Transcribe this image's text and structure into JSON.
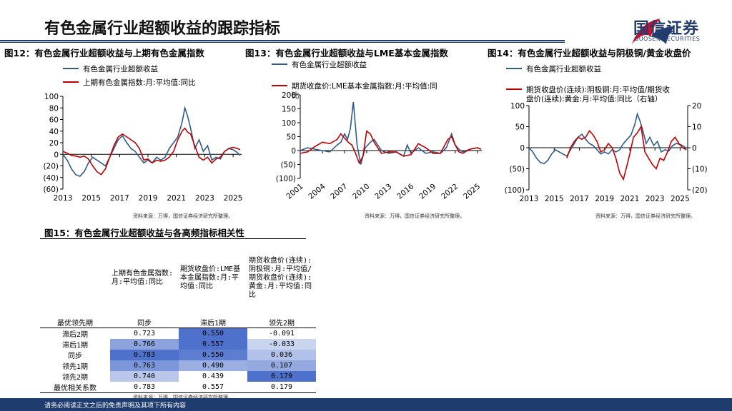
{
  "page": {
    "title": "有色金属行业超额收益的跟踪指标",
    "brand_cn": "国信证券",
    "brand_en": "GUOSEN SECURITIES",
    "footer": "请务必阅读正文之后的免责声明及其项下所有内容",
    "colors": {
      "navy": "#1f3c6e",
      "red": "#c8102e",
      "series_blue": "#2f5b8a",
      "series_red": "#c00000"
    }
  },
  "figures": {
    "fig12": {
      "title": "图12：有色金属行业超额收益与上期有色金属指数",
      "source": "资料来源：万得，国信证券经济研究所整理。"
    },
    "fig13": {
      "title": "图13：有色金属行业超额收益与LME基本金属指数",
      "source": "资料来源：万得，国信证券经济研究所整理。"
    },
    "fig14": {
      "title": "图14：有色金属行业超额收益与阴极铜/黄金收盘价",
      "source": "资料来源：万得，国信证券经济研究所整理。"
    },
    "fig15": {
      "title": "图15：有色金属行业超额收益与各高频指标相关性",
      "source": "资料来源：万得，国信证券经济研究所整理。"
    }
  },
  "chart_data": [
    {
      "type": "line",
      "id": "fig12",
      "legend": [
        "有色金属行业超额收益",
        "上期有色金属指数:月:平均值:同比"
      ],
      "xticks": [
        "2013",
        "2015",
        "2017",
        "2019",
        "2021",
        "2023",
        "2025"
      ],
      "yticks": [
        "100",
        "80",
        "60",
        "40",
        "20",
        "0",
        "(20)",
        "(40)",
        "(60)"
      ],
      "ylim": [
        -60,
        100
      ],
      "xlim": [
        2013,
        2025.6
      ],
      "series": [
        {
          "name": "有色金属行业超额收益",
          "color": "#2f5b8a",
          "x": [
            2013.0,
            2013.3,
            2013.6,
            2013.9,
            2014.2,
            2014.5,
            2014.8,
            2015.1,
            2015.4,
            2015.7,
            2016.0,
            2016.3,
            2016.6,
            2016.9,
            2017.2,
            2017.5,
            2017.8,
            2018.1,
            2018.4,
            2018.7,
            2019.0,
            2019.3,
            2019.6,
            2019.9,
            2020.2,
            2020.5,
            2020.8,
            2021.1,
            2021.4,
            2021.6,
            2021.8,
            2022.0,
            2022.3,
            2022.6,
            2022.9,
            2023.2,
            2023.5,
            2023.8,
            2024.1,
            2024.4,
            2024.7,
            2025.0,
            2025.3,
            2025.5
          ],
          "y": [
            0,
            -10,
            -25,
            -35,
            -38,
            -30,
            -15,
            -5,
            -10,
            -15,
            -20,
            -5,
            10,
            25,
            32,
            20,
            10,
            5,
            -5,
            -15,
            -10,
            -15,
            -5,
            -10,
            -5,
            10,
            20,
            30,
            55,
            80,
            65,
            45,
            10,
            25,
            5,
            15,
            -10,
            -5,
            -8,
            5,
            10,
            8,
            3,
            -2
          ]
        },
        {
          "name": "上期有色金属指数:月:平均值:同比",
          "color": "#c00000",
          "x": [
            2013.0,
            2013.3,
            2013.6,
            2013.9,
            2014.2,
            2014.5,
            2014.8,
            2015.1,
            2015.4,
            2015.7,
            2016.0,
            2016.3,
            2016.6,
            2016.9,
            2017.2,
            2017.5,
            2017.8,
            2018.1,
            2018.4,
            2018.7,
            2019.0,
            2019.3,
            2019.6,
            2019.9,
            2020.2,
            2020.5,
            2020.8,
            2021.1,
            2021.4,
            2021.6,
            2021.8,
            2022.0,
            2022.3,
            2022.6,
            2022.9,
            2023.2,
            2023.5,
            2023.8,
            2024.1,
            2024.4,
            2024.7,
            2025.0,
            2025.3,
            2025.5
          ],
          "y": [
            5,
            2,
            -2,
            -3,
            -5,
            -3,
            -8,
            -20,
            -30,
            -35,
            -25,
            -5,
            15,
            30,
            35,
            30,
            25,
            20,
            10,
            -10,
            -8,
            -15,
            -10,
            -12,
            -10,
            -5,
            5,
            25,
            40,
            45,
            38,
            35,
            15,
            -5,
            -10,
            -5,
            -15,
            -8,
            -5,
            5,
            10,
            12,
            10,
            8
          ]
        }
      ]
    },
    {
      "type": "line",
      "id": "fig13",
      "legend": [
        "有色金属行业超额收益",
        "期货收盘价:LME基本金属指数:月:平均值:同比"
      ],
      "xticks": [
        "2001",
        "2004",
        "2007",
        "2010",
        "2013",
        "2016",
        "2019",
        "2022",
        "2025"
      ],
      "yticks": [
        "200",
        "150",
        "100",
        "50",
        "0",
        "(50)",
        "(100)"
      ],
      "ylim": [
        -100,
        200
      ],
      "xlim": [
        2001,
        2025.6
      ],
      "series": [
        {
          "name": "有色金属行业超额收益",
          "color": "#2f5b8a",
          "x": [
            2001,
            2002,
            2003,
            2004,
            2005,
            2006,
            2006.5,
            2007,
            2007.4,
            2007.8,
            2008.2,
            2008.7,
            2009.2,
            2009.8,
            2010.5,
            2011,
            2012,
            2013,
            2014,
            2015,
            2015.5,
            2016,
            2017,
            2018,
            2019,
            2020,
            2020.8,
            2021.5,
            2022,
            2022.5,
            2023,
            2024,
            2025,
            2025.5
          ],
          "y": [
            0,
            10,
            5,
            0,
            -5,
            20,
            30,
            60,
            40,
            80,
            175,
            20,
            -50,
            10,
            30,
            40,
            0,
            -10,
            -5,
            -20,
            20,
            -10,
            10,
            -10,
            -5,
            -10,
            10,
            60,
            20,
            5,
            -5,
            5,
            10,
            5
          ]
        },
        {
          "name": "期货收盘价:LME基本金属指数:月:平均值:同比",
          "color": "#c00000",
          "x": [
            2001,
            2002,
            2003,
            2004,
            2005,
            2006,
            2006.5,
            2007,
            2007.5,
            2008,
            2008.5,
            2009,
            2009.5,
            2010,
            2010.5,
            2011,
            2012,
            2013,
            2014,
            2015,
            2016,
            2017,
            2018,
            2019,
            2020,
            2021,
            2021.5,
            2022,
            2022.5,
            2023,
            2024,
            2025,
            2025.5
          ],
          "y": [
            -10,
            -5,
            15,
            30,
            25,
            40,
            60,
            45,
            30,
            20,
            -10,
            -45,
            -20,
            70,
            60,
            30,
            -10,
            -5,
            -5,
            -20,
            -15,
            25,
            10,
            -10,
            -10,
            40,
            50,
            20,
            -5,
            -10,
            5,
            10,
            5
          ]
        }
      ]
    },
    {
      "type": "line",
      "id": "fig14",
      "legend": [
        "有色金属行业超额收益",
        "期货收盘价(连续):阴极铜:月:平均值/期货收盘价(连续):黄金:月:平均值:同比（右轴）"
      ],
      "xticks": [
        "2013",
        "2015",
        "2017",
        "2019",
        "2021",
        "2023",
        "2025"
      ],
      "yticks_left": [
        "100",
        "50",
        "0",
        "(50)",
        "(100)"
      ],
      "yticks_right": [
        "20",
        "10",
        "0",
        "(10)",
        "(20)"
      ],
      "ylim": [
        -100,
        100
      ],
      "ylim_right": [
        -20,
        20
      ],
      "xlim": [
        2013,
        2025.6
      ],
      "series": [
        {
          "name": "有色金属行业超额收益",
          "color": "#2f5b8a",
          "axis": "left",
          "x": [
            2013.0,
            2013.3,
            2013.6,
            2013.9,
            2014.2,
            2014.5,
            2014.8,
            2015.1,
            2015.4,
            2015.7,
            2016.0,
            2016.3,
            2016.6,
            2016.9,
            2017.2,
            2017.5,
            2017.8,
            2018.1,
            2018.4,
            2018.7,
            2019.0,
            2019.3,
            2019.6,
            2019.9,
            2020.2,
            2020.5,
            2020.8,
            2021.1,
            2021.4,
            2021.6,
            2021.8,
            2022.0,
            2022.3,
            2022.6,
            2022.9,
            2023.2,
            2023.5,
            2023.8,
            2024.1,
            2024.4,
            2024.7,
            2025.0,
            2025.3,
            2025.5
          ],
          "y": [
            0,
            -10,
            -25,
            -35,
            -38,
            -30,
            -15,
            -5,
            -10,
            -15,
            -20,
            -5,
            10,
            25,
            32,
            20,
            10,
            5,
            -5,
            -15,
            -10,
            -15,
            -5,
            -10,
            -5,
            10,
            20,
            30,
            55,
            80,
            65,
            45,
            10,
            25,
            5,
            15,
            -10,
            -5,
            -8,
            5,
            10,
            8,
            3,
            -2
          ]
        },
        {
          "name": "期货收盘价(连续):阴极铜:月:平均值/期货收盘价(连续):黄金:月:平均值:同比（右轴）",
          "color": "#c00000",
          "axis": "right",
          "x": [
            2016.0,
            2016.3,
            2016.6,
            2016.9,
            2017.2,
            2017.5,
            2017.8,
            2018.1,
            2018.4,
            2018.7,
            2019.0,
            2019.3,
            2019.6,
            2019.9,
            2020.2,
            2020.5,
            2020.8,
            2021.0,
            2021.3,
            2021.6,
            2021.9,
            2022.2,
            2022.5,
            2022.8,
            2023.1,
            2023.4,
            2023.7,
            2024.0,
            2024.3,
            2024.6,
            2024.9,
            2025.2,
            2025.5
          ],
          "y": [
            -5,
            0,
            3,
            5,
            4,
            5,
            8,
            6,
            3,
            -2,
            -1,
            2,
            0,
            -5,
            -12,
            -15,
            -8,
            -3,
            5,
            7,
            10,
            -2,
            -5,
            -8,
            -10,
            -5,
            -6,
            -2,
            3,
            5,
            2,
            0,
            -1
          ]
        }
      ]
    }
  ],
  "table": {
    "col_headers": [
      "上期有色金属指数:月:平均值:同比",
      "期货收盘价:LME基本金属指数:月:平均值:同比",
      "期货收盘价(连续):阴极铜:月:平均值/期货收盘价(连续):黄金:月:平均值:同比"
    ],
    "rows": [
      {
        "label": "最优领先期",
        "cells": [
          "同步",
          "滞后1期",
          "领先2期"
        ],
        "shade": [
          0,
          0,
          0
        ]
      },
      {
        "label": "滞后2期",
        "cells": [
          "0.723",
          "0.550",
          "-0.091"
        ],
        "shade": [
          0,
          1,
          0
        ]
      },
      {
        "label": "滞后1期",
        "cells": [
          "0.766",
          "0.557",
          "-0.033"
        ],
        "shade": [
          0.6,
          1,
          0.2
        ]
      },
      {
        "label": "同步",
        "cells": [
          "0.783",
          "0.550",
          "0.036"
        ],
        "shade": [
          1,
          0.9,
          0.35
        ]
      },
      {
        "label": "领先1期",
        "cells": [
          "0.763",
          "0.490",
          "0.107"
        ],
        "shade": [
          0.7,
          0.5,
          0.55
        ]
      },
      {
        "label": "领先2期",
        "cells": [
          "0.740",
          "0.439",
          "0.179"
        ],
        "shade": [
          0.3,
          0,
          1
        ]
      },
      {
        "label": "最优相关系数",
        "cells": [
          "0.783",
          "0.557",
          "0.179"
        ],
        "shade": [
          0,
          0,
          0
        ]
      }
    ]
  }
}
